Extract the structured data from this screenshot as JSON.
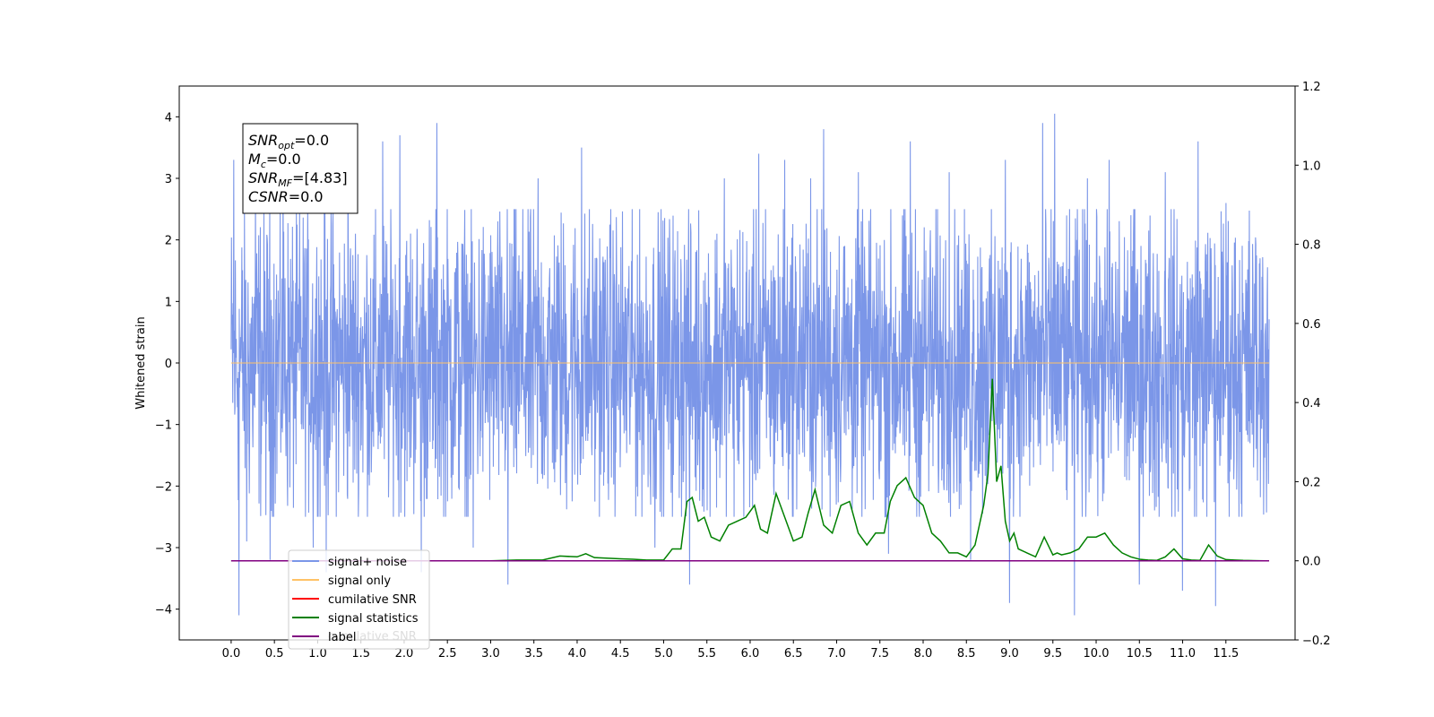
{
  "chart_data": {
    "type": "line",
    "xlim": [
      -0.6,
      12.3
    ],
    "x_ticks": [
      "0.0",
      "0.5",
      "1.0",
      "1.5",
      "2.0",
      "2.5",
      "3.0",
      "3.5",
      "4.0",
      "4.5",
      "5.0",
      "5.5",
      "6.0",
      "6.5",
      "7.0",
      "7.5",
      "8.0",
      "8.5",
      "9.0",
      "9.5",
      "10.0",
      "10.5",
      "11.0",
      "11.5"
    ],
    "left_axis": {
      "ylabel": "Whitened strain",
      "ylim": [
        -4.5,
        4.5
      ],
      "ticks": [
        "−4",
        "−3",
        "−2",
        "−1",
        "0",
        "1",
        "2",
        "3",
        "4"
      ]
    },
    "right_axis": {
      "ylim": [
        -0.2,
        1.2
      ],
      "ticks": [
        "−0.2",
        "0.0",
        "0.2",
        "0.4",
        "0.6",
        "0.8",
        "1.0",
        "1.2"
      ]
    },
    "grid": false,
    "info_box": {
      "lines": [
        {
          "main": "SNR",
          "sub": "opt",
          "value": "=0.0"
        },
        {
          "main": "M",
          "sub": "c",
          "value": "=0.0"
        },
        {
          "main": "SNR",
          "sub": "MF",
          "value": "=[4.83]"
        },
        {
          "main": "CSNR",
          "sub": "",
          "value": "=0.0"
        }
      ]
    },
    "legend": {
      "placement": "lower-left",
      "entries": [
        {
          "label": "signal+ noise",
          "color": "#7b96e8"
        },
        {
          "label": "signal only",
          "color": "#ffc266"
        },
        {
          "label": "cumilative SNR",
          "color": "#ff0000"
        },
        {
          "label": "signal statistics",
          "color": "#008000"
        },
        {
          "label": "label",
          "color": "#800080"
        }
      ],
      "ghost_text": "cumilative SNR"
    },
    "series": [
      {
        "name": "signal+ noise",
        "axis": "left",
        "color": "#7b96e8",
        "x_range": [
          0.0,
          12.0
        ],
        "typical_range": [
          -2.5,
          2.5
        ],
        "spikes": [
          {
            "x": 0.03,
            "y": 3.3
          },
          {
            "x": 0.09,
            "y": -4.1
          },
          {
            "x": 0.18,
            "y": -2.9
          },
          {
            "x": 0.28,
            "y": 3.0
          },
          {
            "x": 0.45,
            "y": -3.2
          },
          {
            "x": 0.6,
            "y": 3.3
          },
          {
            "x": 0.95,
            "y": -3.0
          },
          {
            "x": 1.1,
            "y": -3.4
          },
          {
            "x": 1.35,
            "y": 3.5
          },
          {
            "x": 1.75,
            "y": 3.6
          },
          {
            "x": 1.95,
            "y": 3.7
          },
          {
            "x": 2.2,
            "y": -3.4
          },
          {
            "x": 2.38,
            "y": 3.9
          },
          {
            "x": 2.8,
            "y": -3.0
          },
          {
            "x": 3.2,
            "y": -3.6
          },
          {
            "x": 3.55,
            "y": 3.0
          },
          {
            "x": 4.05,
            "y": 3.5
          },
          {
            "x": 4.9,
            "y": -3.0
          },
          {
            "x": 5.3,
            "y": -3.6
          },
          {
            "x": 5.7,
            "y": 3.0
          },
          {
            "x": 6.1,
            "y": 3.4
          },
          {
            "x": 6.4,
            "y": 3.3
          },
          {
            "x": 6.7,
            "y": 3.0
          },
          {
            "x": 6.85,
            "y": 3.8
          },
          {
            "x": 7.25,
            "y": 3.1
          },
          {
            "x": 7.6,
            "y": -3.1
          },
          {
            "x": 7.85,
            "y": 3.6
          },
          {
            "x": 8.3,
            "y": 3.1
          },
          {
            "x": 8.55,
            "y": -3.2
          },
          {
            "x": 8.95,
            "y": 3.3
          },
          {
            "x": 9.0,
            "y": -3.9
          },
          {
            "x": 9.38,
            "y": 3.9
          },
          {
            "x": 9.52,
            "y": 4.05
          },
          {
            "x": 9.75,
            "y": -4.1
          },
          {
            "x": 9.9,
            "y": 3.0
          },
          {
            "x": 10.15,
            "y": 3.3
          },
          {
            "x": 10.5,
            "y": -3.6
          },
          {
            "x": 10.8,
            "y": 3.1
          },
          {
            "x": 11.0,
            "y": -3.7
          },
          {
            "x": 11.18,
            "y": 3.6
          },
          {
            "x": 11.38,
            "y": -3.95
          },
          {
            "x": 11.5,
            "y": 2.6
          }
        ]
      },
      {
        "name": "signal only",
        "axis": "left",
        "color": "#ffc266",
        "x": [
          0.0,
          12.0
        ],
        "y": [
          0.0,
          0.0
        ]
      },
      {
        "name": "signal statistics",
        "axis": "right",
        "color": "#008000",
        "x": [
          0.0,
          3.0,
          3.3,
          3.6,
          3.8,
          4.0,
          4.1,
          4.2,
          4.5,
          4.65,
          4.8,
          5.0,
          5.1,
          5.2,
          5.27,
          5.33,
          5.4,
          5.47,
          5.55,
          5.65,
          5.75,
          5.85,
          5.95,
          6.05,
          6.12,
          6.2,
          6.3,
          6.4,
          6.5,
          6.6,
          6.67,
          6.75,
          6.85,
          6.95,
          7.05,
          7.15,
          7.25,
          7.35,
          7.45,
          7.55,
          7.62,
          7.7,
          7.8,
          7.9,
          8.0,
          8.1,
          8.2,
          8.3,
          8.4,
          8.5,
          8.6,
          8.7,
          8.75,
          8.8,
          8.85,
          8.9,
          8.95,
          9.0,
          9.05,
          9.1,
          9.2,
          9.3,
          9.4,
          9.5,
          9.55,
          9.6,
          9.7,
          9.8,
          9.9,
          10.0,
          10.1,
          10.2,
          10.3,
          10.4,
          10.5,
          10.6,
          10.7,
          10.8,
          10.9,
          11.0,
          11.1,
          11.2,
          11.3,
          11.4,
          11.5,
          11.6,
          11.7,
          11.95
        ],
        "y": [
          0.0,
          0.0,
          0.002,
          0.002,
          0.012,
          0.01,
          0.018,
          0.008,
          0.005,
          0.004,
          0.002,
          0.002,
          0.03,
          0.03,
          0.15,
          0.16,
          0.1,
          0.11,
          0.06,
          0.05,
          0.09,
          0.1,
          0.11,
          0.14,
          0.08,
          0.07,
          0.17,
          0.11,
          0.05,
          0.06,
          0.12,
          0.18,
          0.09,
          0.07,
          0.14,
          0.15,
          0.07,
          0.04,
          0.07,
          0.07,
          0.15,
          0.19,
          0.21,
          0.16,
          0.14,
          0.07,
          0.05,
          0.02,
          0.02,
          0.01,
          0.04,
          0.14,
          0.22,
          0.46,
          0.2,
          0.24,
          0.1,
          0.05,
          0.07,
          0.03,
          0.02,
          0.01,
          0.06,
          0.015,
          0.02,
          0.015,
          0.02,
          0.03,
          0.06,
          0.06,
          0.07,
          0.04,
          0.02,
          0.01,
          0.004,
          0.002,
          0.001,
          0.01,
          0.03,
          0.005,
          0.002,
          0.001,
          0.04,
          0.012,
          0.003,
          0.002,
          0.001,
          0.0
        ]
      },
      {
        "name": "label",
        "axis": "right",
        "color": "#800080",
        "x": [
          0.0,
          12.0
        ],
        "y": [
          0.0,
          0.0
        ]
      }
    ]
  }
}
